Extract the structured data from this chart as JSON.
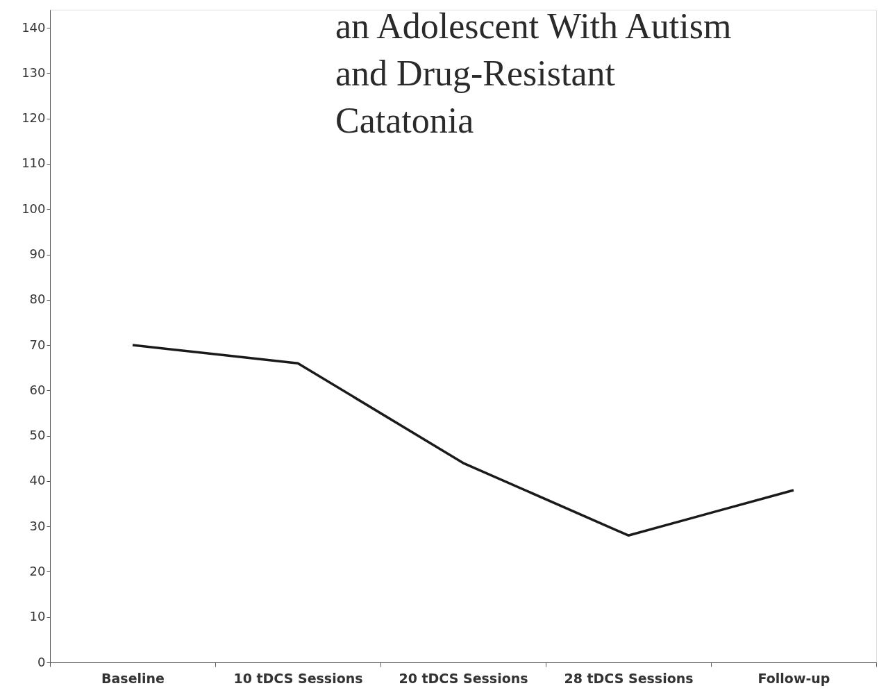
{
  "chart_data": {
    "type": "line",
    "categories": [
      "Baseline",
      "10 tDCS Sessions",
      "20 tDCS Sessions",
      "28 tDCS Sessions",
      "Follow-up"
    ],
    "series": [
      {
        "color": "#1a1a1a",
        "values": [
          70,
          66,
          44,
          28,
          38
        ]
      }
    ],
    "ylim": [
      0,
      144
    ],
    "yticks": [
      0,
      10,
      20,
      30,
      40,
      50,
      60,
      70,
      80,
      90,
      100,
      110,
      120,
      130,
      140
    ],
    "grid": false,
    "marker": "none",
    "line_style": "solid",
    "annotations": [
      "an Adolescent With Autism\nand Drug-Resistant\nCatatonia"
    ]
  }
}
